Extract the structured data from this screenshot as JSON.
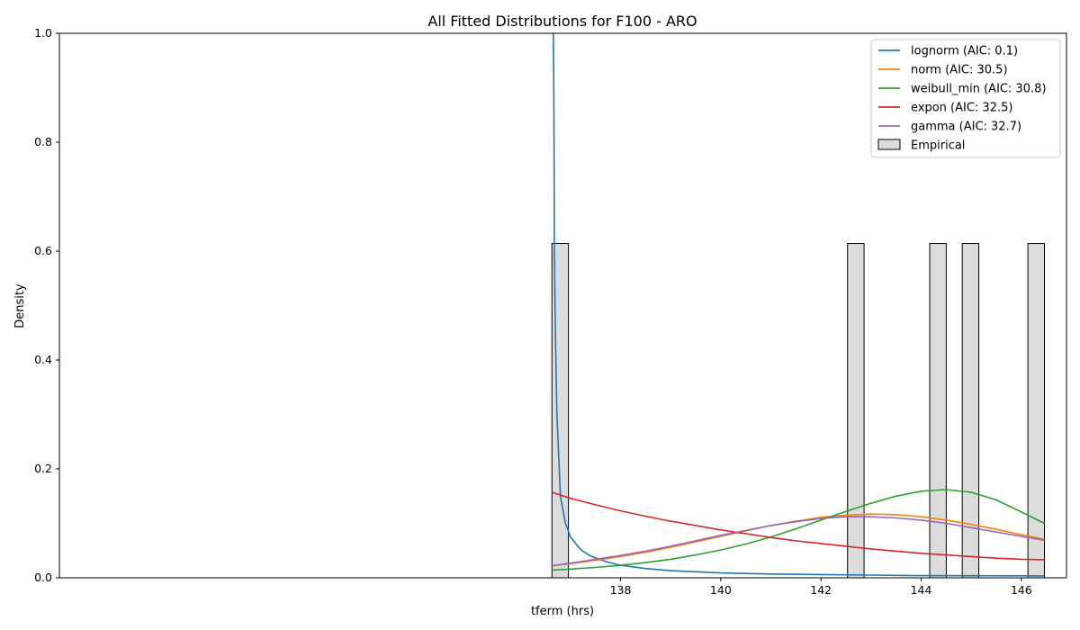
{
  "chart_data": {
    "type": "line",
    "title": "All Fitted Distributions for F100 - ARO",
    "xlabel": "tferm (hrs)",
    "ylabel": "Density",
    "xlim": [
      126.8,
      146.9
    ],
    "ylim": [
      0,
      1.0
    ],
    "x_ticks": [
      138,
      140,
      142,
      144,
      146
    ],
    "y_ticks": [
      0.0,
      0.2,
      0.4,
      0.6,
      0.8,
      1.0
    ],
    "x_tick_labels": [
      "138",
      "140",
      "142",
      "144",
      "146"
    ],
    "y_tick_labels": [
      "0.0",
      "0.2",
      "0.4",
      "0.6",
      "0.8",
      "1.0"
    ],
    "grid": false,
    "legend_position": "top-right",
    "histogram": {
      "name": "Empirical",
      "color": "#dcdcdc",
      "edge_color": "#000000",
      "bin_width": 0.33,
      "bins": [
        {
          "start": 136.63,
          "density": 0.614
        },
        {
          "start": 142.53,
          "density": 0.614
        },
        {
          "start": 144.17,
          "density": 0.614
        },
        {
          "start": 144.82,
          "density": 0.614
        },
        {
          "start": 146.13,
          "density": 0.614
        }
      ]
    },
    "series": [
      {
        "name": "lognorm (AIC: 0.1)",
        "color": "#1f77b4",
        "x": [
          136.66,
          136.67,
          136.68,
          136.7,
          136.73,
          136.8,
          136.9,
          137.0,
          137.2,
          137.4,
          137.7,
          138.0,
          138.5,
          139.0,
          140.0,
          141.0,
          142.0,
          143.0,
          144.0,
          145.0,
          146.46
        ],
        "y": [
          1.0,
          0.85,
          0.6,
          0.45,
          0.3,
          0.15,
          0.1,
          0.075,
          0.052,
          0.04,
          0.03,
          0.023,
          0.017,
          0.013,
          0.009,
          0.007,
          0.006,
          0.005,
          0.004,
          0.0038,
          0.0035
        ]
      },
      {
        "name": "norm (AIC: 30.5)",
        "color": "#ff7f0e",
        "x": [
          136.63,
          137.0,
          137.5,
          138.0,
          138.5,
          139.0,
          139.5,
          140.0,
          140.5,
          141.0,
          141.5,
          142.0,
          142.5,
          143.0,
          143.5,
          144.0,
          144.5,
          145.0,
          145.5,
          146.0,
          146.46
        ],
        "y": [
          0.022,
          0.026,
          0.032,
          0.039,
          0.047,
          0.056,
          0.066,
          0.076,
          0.086,
          0.096,
          0.104,
          0.111,
          0.115,
          0.117,
          0.116,
          0.112,
          0.106,
          0.098,
          0.089,
          0.079,
          0.071
        ]
      },
      {
        "name": "weibull_min (AIC: 30.8)",
        "color": "#2ca02c",
        "x": [
          136.63,
          137.0,
          137.5,
          138.0,
          138.5,
          139.0,
          139.5,
          140.0,
          140.5,
          141.0,
          141.5,
          142.0,
          142.5,
          143.0,
          143.5,
          144.0,
          144.5,
          145.0,
          145.5,
          146.0,
          146.46
        ],
        "y": [
          0.014,
          0.016,
          0.019,
          0.023,
          0.028,
          0.034,
          0.042,
          0.051,
          0.062,
          0.075,
          0.09,
          0.106,
          0.122,
          0.137,
          0.15,
          0.159,
          0.162,
          0.157,
          0.143,
          0.121,
          0.1
        ]
      },
      {
        "name": "expon (AIC: 32.5)",
        "color": "#d62728",
        "x": [
          136.63,
          137.0,
          137.5,
          138.0,
          138.5,
          139.0,
          139.5,
          140.0,
          140.5,
          141.0,
          141.5,
          142.0,
          142.5,
          143.0,
          143.5,
          144.0,
          144.5,
          145.0,
          145.5,
          146.0,
          146.46
        ],
        "y": [
          0.157,
          0.146,
          0.134,
          0.123,
          0.113,
          0.104,
          0.096,
          0.088,
          0.081,
          0.074,
          0.068,
          0.063,
          0.058,
          0.053,
          0.049,
          0.045,
          0.042,
          0.039,
          0.036,
          0.034,
          0.033
        ]
      },
      {
        "name": "gamma (AIC: 32.7)",
        "color": "#9467bd",
        "x": [
          136.63,
          137.0,
          137.5,
          138.0,
          138.5,
          139.0,
          139.5,
          140.0,
          140.5,
          141.0,
          141.5,
          142.0,
          142.5,
          143.0,
          143.5,
          144.0,
          144.5,
          145.0,
          145.5,
          146.0,
          146.46
        ],
        "y": [
          0.022,
          0.027,
          0.034,
          0.041,
          0.049,
          0.058,
          0.068,
          0.078,
          0.087,
          0.096,
          0.103,
          0.109,
          0.112,
          0.112,
          0.11,
          0.106,
          0.1,
          0.092,
          0.084,
          0.076,
          0.069
        ]
      }
    ]
  }
}
